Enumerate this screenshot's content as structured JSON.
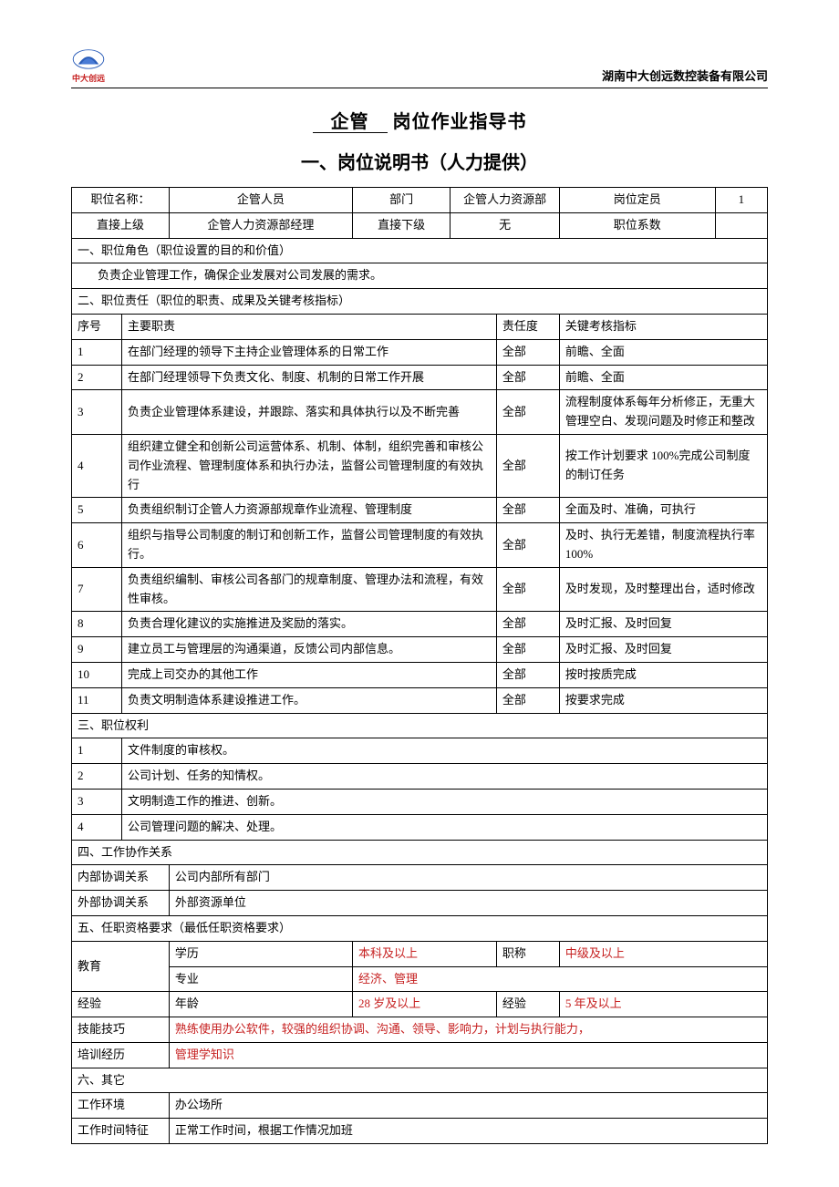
{
  "header": {
    "logo_label": "中大创远",
    "company": "湖南中大创远数控装备有限公司"
  },
  "title": {
    "dept": "企管",
    "rest": "岗位作业指导书"
  },
  "section_title": "一、岗位说明书（人力提供）",
  "info1": {
    "lbl_position": "职位名称：",
    "val_position": "企管人员",
    "lbl_dept": "部门",
    "val_dept": "企管人力资源部",
    "lbl_quota": "岗位定员",
    "val_quota": "1",
    "lbl_superior": "直接上级",
    "val_superior": "企管人力资源部经理",
    "lbl_subordinate": "直接下级",
    "val_subordinate": "无",
    "lbl_coeff": "职位系数",
    "val_coeff": ""
  },
  "s1": {
    "header": "一、职位角色（职位设置的目的和价值）",
    "content": "负责企业管理工作，确保企业发展对公司发展的需求。"
  },
  "s2": {
    "header": "二、职位责任（职位的职责、成果及关键考核指标）",
    "col_no": "序号",
    "col_duty": "主要职责",
    "col_degree": "责任度",
    "col_kpi": "关键考核指标",
    "rows": [
      {
        "no": "1",
        "duty": "在部门经理的领导下主持企业管理体系的日常工作",
        "deg": "全部",
        "kpi": "前瞻、全面"
      },
      {
        "no": "2",
        "duty": "在部门经理领导下负责文化、制度、机制的日常工作开展",
        "deg": "全部",
        "kpi": "前瞻、全面"
      },
      {
        "no": "3",
        "duty": "负责企业管理体系建设，并跟踪、落实和具体执行以及不断完善",
        "deg": "全部",
        "kpi": "流程制度体系每年分析修正，无重大管理空白、发现问题及时修正和整改"
      },
      {
        "no": "4",
        "duty": "组织建立健全和创新公司运营体系、机制、体制，组织完善和审核公司作业流程、管理制度体系和执行办法，监督公司管理制度的有效执行",
        "deg": "全部",
        "kpi": "按工作计划要求 100%完成公司制度的制订任务"
      },
      {
        "no": "5",
        "duty": "负责组织制订企管人力资源部规章作业流程、管理制度",
        "deg": "全部",
        "kpi": "全面及时、准确，可执行"
      },
      {
        "no": "6",
        "duty": "组织与指导公司制度的制订和创新工作，监督公司管理制度的有效执行。",
        "deg": "全部",
        "kpi": "及时、执行无差错，制度流程执行率 100%"
      },
      {
        "no": "7",
        "duty": "负责组织编制、审核公司各部门的规章制度、管理办法和流程，有效性审核。",
        "deg": "全部",
        "kpi": "及时发现，及时整理出台，适时修改"
      },
      {
        "no": "8",
        "duty": "负责合理化建议的实施推进及奖励的落实。",
        "deg": "全部",
        "kpi": "及时汇报、及时回复"
      },
      {
        "no": "9",
        "duty": "建立员工与管理层的沟通渠道，反馈公司内部信息。",
        "deg": "全部",
        "kpi": "及时汇报、及时回复"
      },
      {
        "no": "10",
        "duty": "完成上司交办的其他工作",
        "deg": "全部",
        "kpi": "按时按质完成"
      },
      {
        "no": "11",
        "duty": "  负责文明制造体系建设推进工作。",
        "deg": "全部",
        "kpi": "按要求完成"
      }
    ]
  },
  "s3": {
    "header": "三、职位权利",
    "rows": [
      {
        "no": "1",
        "txt": "文件制度的审核权。"
      },
      {
        "no": "2",
        "txt": "公司计划、任务的知情权。"
      },
      {
        "no": "3",
        "txt": "文明制造工作的推进、创新。"
      },
      {
        "no": "4",
        "txt": "公司管理问题的解决、处理。"
      }
    ]
  },
  "s4": {
    "header": "四、工作协作关系",
    "r1_lbl": "内部协调关系",
    "r1_val": "公司内部所有部门",
    "r2_lbl": "外部协调关系",
    "r2_val": "外部资源单位"
  },
  "s5": {
    "header": "五、任职资格要求（最低任职资格要求）",
    "edu_lbl": "教育",
    "edu_deg_lbl": "学历",
    "edu_deg_val": "本科及以上",
    "edu_title_lbl": "职称",
    "edu_title_val": "中级及以上",
    "edu_major_lbl": "专业",
    "edu_major_val": "经济、管理",
    "exp_lbl": "经验",
    "exp_age_lbl": "年龄",
    "exp_age_val": "28 岁及以上",
    "exp_yrs_lbl": "经验",
    "exp_yrs_val": "5 年及以上",
    "skill_lbl": "技能技巧",
    "skill_val": "熟练使用办公软件，较强的组织协调、沟通、领导、影响力，计划与执行能力，",
    "train_lbl": "培训经历",
    "train_val": "管理学知识"
  },
  "s6": {
    "header": "六、其它",
    "env_lbl": "工作环境",
    "env_val": "办公场所",
    "time_lbl": "工作时间特征",
    "time_val": "正常工作时间，根据工作情况加班"
  }
}
